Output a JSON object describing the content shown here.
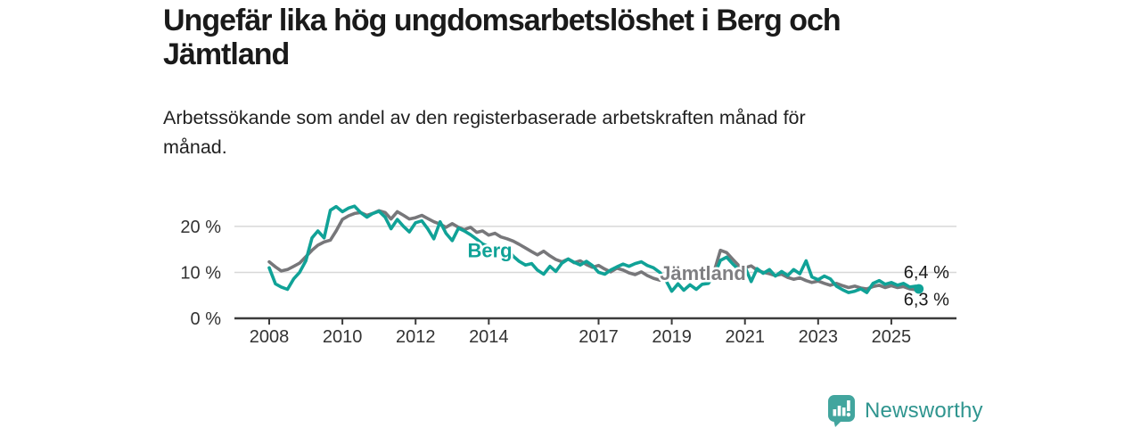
{
  "header": {
    "title_lines": [
      "Ungefär lika hög ungdomsarbetslöshet i Berg och",
      "Jämtland"
    ],
    "subtitle_lines": [
      "Arbetssökande som andel av den registerbaserade arbetskraften månad för",
      "månad."
    ]
  },
  "footer": {
    "brand": "Newsworthy",
    "brand_color": "#2f958f",
    "icon_color": "#42a59e",
    "icon_name": "newsworthy-bar-chart-bubble-icon"
  },
  "chart_data": {
    "type": "line",
    "title": "Ungefär lika hög ungdomsarbetslöshet i Berg och Jämtland",
    "subtitle": "Arbetssökande som andel av den registerbaserade arbetskraften månad för månad.",
    "x_unit": "decimal year (monthly series, 2-month samples)",
    "y_unit": "percent of registered labour force",
    "grid": true,
    "legend_position": "inline-labels-on-lines",
    "xlim": [
      2007.05,
      2026.78
    ],
    "ylim": [
      0,
      25.6
    ],
    "x_ticks": [
      2008,
      2010,
      2012,
      2014,
      2017,
      2019,
      2021,
      2023,
      2025
    ],
    "y_ticks": [
      {
        "value": 0,
        "label": "0 %"
      },
      {
        "value": 10,
        "label": "10 %"
      },
      {
        "value": 20,
        "label": "20 %"
      }
    ],
    "colors": {
      "grid": "#d8d8d8",
      "axis": "#3b3b3b",
      "tick_label": "#333333",
      "end_label": "#1a1a1a"
    },
    "x": [
      2008,
      2008.17,
      2008.33,
      2008.5,
      2008.67,
      2008.83,
      2009,
      2009.17,
      2009.33,
      2009.5,
      2009.67,
      2009.83,
      2010,
      2010.17,
      2010.33,
      2010.5,
      2010.67,
      2010.83,
      2011,
      2011.17,
      2011.33,
      2011.5,
      2011.67,
      2011.83,
      2012,
      2012.17,
      2012.33,
      2012.5,
      2012.67,
      2012.83,
      2013,
      2013.17,
      2013.33,
      2013.5,
      2013.67,
      2013.83,
      2014,
      2014.17,
      2014.33,
      2014.5,
      2014.67,
      2014.83,
      2015,
      2015.17,
      2015.33,
      2015.5,
      2015.67,
      2015.83,
      2016,
      2016.17,
      2016.33,
      2016.5,
      2016.67,
      2016.83,
      2017,
      2017.17,
      2017.33,
      2017.5,
      2017.67,
      2017.83,
      2018,
      2018.17,
      2018.33,
      2018.5,
      2018.67,
      2018.83,
      2019,
      2019.17,
      2019.33,
      2019.5,
      2019.67,
      2019.83,
      2020,
      2020.17,
      2020.33,
      2020.5,
      2020.67,
      2020.83,
      2021,
      2021.17,
      2021.33,
      2021.5,
      2021.67,
      2021.83,
      2022,
      2022.17,
      2022.33,
      2022.5,
      2022.67,
      2022.83,
      2023,
      2023.17,
      2023.33,
      2023.5,
      2023.67,
      2023.83,
      2024,
      2024.17,
      2024.33,
      2024.5,
      2024.67,
      2024.83,
      2025,
      2025.17,
      2025.33,
      2025.5,
      2025.67,
      2025.75
    ],
    "series": [
      {
        "name": "Jämtland",
        "color": "#77777a",
        "label_color": "#7f7f82",
        "label_pos": {
          "x": 2019.85,
          "y": 9.9
        },
        "end_label": "6,3 %",
        "end_value": 6.3,
        "end_dot": true,
        "values": [
          12.3,
          11.2,
          10.3,
          10.6,
          11.3,
          12.0,
          13.4,
          14.8,
          15.9,
          16.6,
          17.0,
          19.0,
          21.5,
          22.3,
          22.8,
          23.0,
          22.4,
          22.8,
          23.4,
          23.0,
          21.6,
          23.2,
          22.4,
          21.6,
          21.9,
          22.4,
          21.7,
          21.0,
          20.5,
          19.8,
          20.6,
          19.8,
          19.3,
          19.8,
          18.7,
          19.0,
          18.1,
          18.5,
          17.7,
          17.3,
          16.8,
          16.1,
          15.3,
          14.5,
          13.8,
          14.6,
          13.6,
          12.8,
          12.3,
          12.9,
          12.1,
          12.5,
          11.7,
          11.1,
          11.5,
          10.7,
          10.1,
          10.9,
          10.5,
          9.9,
          9.5,
          10.1,
          9.3,
          8.7,
          8.3,
          9.1,
          9.5,
          9.1,
          9.7,
          9.3,
          8.9,
          9.3,
          9.1,
          10.5,
          14.8,
          14.3,
          12.8,
          11.5,
          11.0,
          11.4,
          10.5,
          10.0,
          9.7,
          9.3,
          9.6,
          8.9,
          8.5,
          8.8,
          8.2,
          7.8,
          8.1,
          7.6,
          7.2,
          7.6,
          7.1,
          6.7,
          7.0,
          6.6,
          6.4,
          6.9,
          7.2,
          6.7,
          7.1,
          6.7,
          6.9,
          6.4,
          6.2,
          6.3
        ]
      },
      {
        "name": "Berg",
        "color": "#10a297",
        "label_color": "#10a297",
        "label_pos": {
          "x": 2014.03,
          "y": 14.8
        },
        "end_label": "6,4 %",
        "end_value": 6.4,
        "end_dot": true,
        "values": [
          11.0,
          7.5,
          6.8,
          6.3,
          8.6,
          10.0,
          12.5,
          17.5,
          19.0,
          17.5,
          23.5,
          24.3,
          23.2,
          24.0,
          24.4,
          23.0,
          22.0,
          22.8,
          23.3,
          22.0,
          19.5,
          21.5,
          20.0,
          18.8,
          20.8,
          21.2,
          19.5,
          17.3,
          21.0,
          18.5,
          16.9,
          19.6,
          19.0,
          18.2,
          17.2,
          16.2,
          15.6,
          15.0,
          14.9,
          15.2,
          13.5,
          12.4,
          11.6,
          11.9,
          10.5,
          9.6,
          11.3,
          10.2,
          12.0,
          12.9,
          12.2,
          11.6,
          12.4,
          11.5,
          10.0,
          9.6,
          10.5,
          11.2,
          11.8,
          11.3,
          11.9,
          12.3,
          11.5,
          11.0,
          10.0,
          8.4,
          5.9,
          7.5,
          6.1,
          7.3,
          6.3,
          7.4,
          7.6,
          9.5,
          12.6,
          13.3,
          11.8,
          10.6,
          11.2,
          8.0,
          10.8,
          9.8,
          10.6,
          9.2,
          10.2,
          9.3,
          10.6,
          9.7,
          12.5,
          9.0,
          8.4,
          9.2,
          8.6,
          7.0,
          6.2,
          5.6,
          5.9,
          6.4,
          5.6,
          7.6,
          8.2,
          7.4,
          7.8,
          7.2,
          7.6,
          6.8,
          7.0,
          6.4
        ]
      }
    ]
  }
}
